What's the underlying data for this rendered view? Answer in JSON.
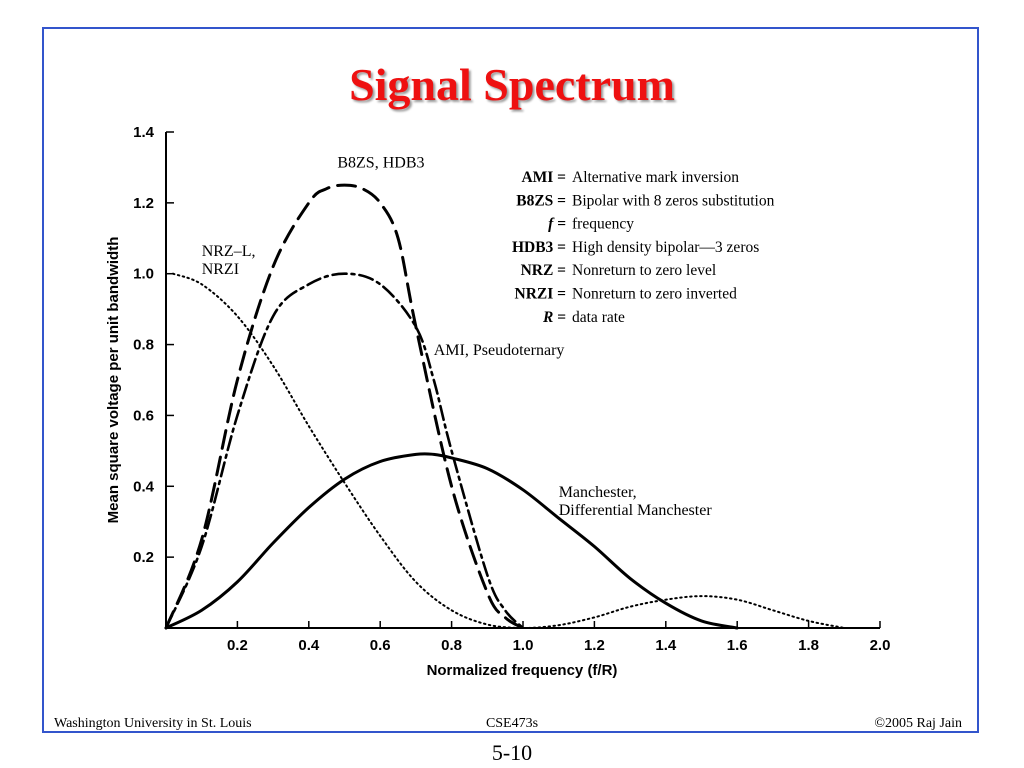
{
  "slide": {
    "title": "Signal Spectrum",
    "footer_left": "Washington University in St. Louis",
    "footer_center": "CSE473s",
    "footer_right": "©2005 Raj Jain",
    "page_number": "5-10",
    "border_color": "#3355cc",
    "title_color": "#ee1111"
  },
  "chart_data": {
    "type": "line",
    "xlabel": "Normalized frequency (f/R)",
    "ylabel": "Mean square voltage per unit bandwidth",
    "xlim": [
      0,
      2.0
    ],
    "ylim": [
      0,
      1.4
    ],
    "x_ticks": [
      "0.2",
      "0.4",
      "0.6",
      "0.8",
      "1.0",
      "1.2",
      "1.4",
      "1.6",
      "1.8",
      "2.0"
    ],
    "y_ticks": [
      "0.2",
      "0.4",
      "0.6",
      "0.8",
      "1.0",
      "1.2",
      "1.4"
    ],
    "series": [
      {
        "name": "NRZ–L, NRZI",
        "style": "dotted",
        "x": [
          0.02,
          0.1,
          0.2,
          0.3,
          0.4,
          0.5,
          0.6,
          0.7,
          0.8,
          0.9,
          1.0,
          1.1,
          1.2,
          1.3,
          1.4,
          1.5,
          1.6,
          1.7,
          1.8,
          1.9
        ],
        "y": [
          1.0,
          0.97,
          0.88,
          0.74,
          0.57,
          0.41,
          0.26,
          0.13,
          0.05,
          0.01,
          0.0,
          0.008,
          0.03,
          0.06,
          0.08,
          0.09,
          0.08,
          0.05,
          0.02,
          0.0
        ]
      },
      {
        "name": "B8ZS, HDB3",
        "style": "dashed",
        "x": [
          0.0,
          0.1,
          0.2,
          0.3,
          0.4,
          0.45,
          0.5,
          0.55,
          0.6,
          0.65,
          0.7,
          0.8,
          0.9,
          0.95,
          1.0
        ],
        "y": [
          0.0,
          0.25,
          0.7,
          1.02,
          1.2,
          1.24,
          1.25,
          1.24,
          1.2,
          1.1,
          0.85,
          0.4,
          0.1,
          0.03,
          0.0
        ]
      },
      {
        "name": "AMI, Pseudoternary",
        "style": "dash-dot",
        "x": [
          0.0,
          0.1,
          0.2,
          0.3,
          0.4,
          0.5,
          0.6,
          0.7,
          0.75,
          0.8,
          0.9,
          0.95,
          1.0
        ],
        "y": [
          0.0,
          0.23,
          0.6,
          0.88,
          0.97,
          1.0,
          0.97,
          0.85,
          0.7,
          0.5,
          0.15,
          0.05,
          0.0
        ]
      },
      {
        "name": "Manchester, Differential Manchester",
        "style": "solid",
        "x": [
          0.0,
          0.1,
          0.2,
          0.3,
          0.4,
          0.5,
          0.6,
          0.7,
          0.75,
          0.8,
          0.9,
          1.0,
          1.1,
          1.2,
          1.3,
          1.4,
          1.5,
          1.6
        ],
        "y": [
          0.0,
          0.05,
          0.13,
          0.24,
          0.34,
          0.42,
          0.47,
          0.49,
          0.49,
          0.48,
          0.45,
          0.39,
          0.31,
          0.23,
          0.14,
          0.07,
          0.02,
          0.0
        ]
      }
    ],
    "curve_labels": [
      {
        "lines": [
          "NRZ–L,",
          "NRZI"
        ],
        "x": 0.1,
        "y": 1.05
      },
      {
        "lines": [
          "B8ZS, HDB3"
        ],
        "x": 0.48,
        "y": 1.3
      },
      {
        "lines": [
          "AMI, Pseudoternary"
        ],
        "x": 0.75,
        "y": 0.77
      },
      {
        "lines": [
          "Manchester,",
          "Differential Manchester"
        ],
        "x": 1.1,
        "y": 0.37
      }
    ],
    "legend": [
      {
        "key": "AMI =",
        "text": "Alternative mark inversion"
      },
      {
        "key": "B8ZS =",
        "text": "Bipolar with 8 zeros substitution"
      },
      {
        "key": "f =",
        "text": "frequency"
      },
      {
        "key": "HDB3 =",
        "text": "High density bipolar—3 zeros"
      },
      {
        "key": "NRZ =",
        "text": "Nonreturn to zero level"
      },
      {
        "key": "NRZI =",
        "text": "Nonreturn to zero inverted"
      },
      {
        "key": "R =",
        "text": "data rate"
      }
    ]
  }
}
